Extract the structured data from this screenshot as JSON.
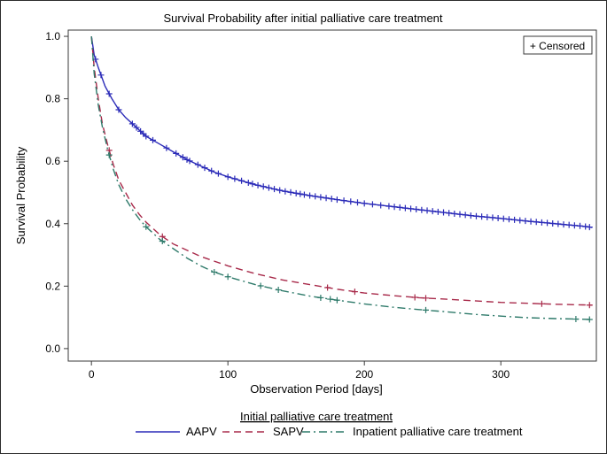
{
  "chart_data": {
    "type": "line",
    "title": "Survival Probability after initial palliative care treatment",
    "xlabel": "Observation Period [days]",
    "ylabel": "Survival Probability",
    "xlim": [
      -17,
      370
    ],
    "ylim": [
      -0.04,
      1.02
    ],
    "xticks": [
      "0",
      "100",
      "200",
      "300"
    ],
    "yticks": [
      "0.0",
      "0.2",
      "0.4",
      "0.6",
      "0.8",
      "1.0"
    ],
    "inset_legend": "+ Censored",
    "legend_title": "Initial palliative care treatment",
    "legend_position": "bottom-center",
    "series": [
      {
        "name": "AAPV",
        "color": "#2b2bb8",
        "dash": "solid",
        "x": [
          0,
          2,
          5,
          10,
          15,
          20,
          25,
          30,
          40,
          50,
          60,
          70,
          80,
          90,
          100,
          120,
          140,
          160,
          180,
          200,
          220,
          240,
          260,
          280,
          300,
          320,
          340,
          360,
          367
        ],
        "y": [
          1.0,
          0.94,
          0.9,
          0.84,
          0.8,
          0.765,
          0.74,
          0.72,
          0.68,
          0.655,
          0.63,
          0.605,
          0.585,
          0.565,
          0.55,
          0.525,
          0.505,
          0.49,
          0.477,
          0.465,
          0.455,
          0.445,
          0.435,
          0.425,
          0.417,
          0.408,
          0.4,
          0.392,
          0.388
        ],
        "censored": [
          3,
          7,
          13,
          20,
          30,
          33,
          36,
          38,
          40,
          45,
          55,
          62,
          67,
          70,
          72,
          78,
          83,
          88,
          93,
          100,
          105,
          110,
          115,
          118,
          122,
          126,
          130,
          134,
          138,
          142,
          146,
          150,
          153,
          156,
          160,
          164,
          168,
          172,
          176,
          180,
          185,
          190,
          195,
          200,
          206,
          212,
          218,
          222,
          226,
          230,
          234,
          238,
          242,
          246,
          250,
          254,
          258,
          262,
          266,
          270,
          274,
          278,
          282,
          286,
          290,
          294,
          298,
          302,
          306,
          310,
          314,
          318,
          322,
          326,
          330,
          334,
          338,
          342,
          346,
          350,
          354,
          358,
          362,
          365
        ]
      },
      {
        "name": "SAPV",
        "color": "#a82a4a",
        "dash": "8,5",
        "x": [
          0,
          2,
          5,
          8,
          12,
          16,
          20,
          25,
          30,
          35,
          40,
          45,
          50,
          55,
          60,
          70,
          80,
          90,
          100,
          120,
          140,
          160,
          180,
          200,
          220,
          240,
          260,
          280,
          300,
          320,
          340,
          360,
          367
        ],
        "y": [
          1.0,
          0.9,
          0.8,
          0.72,
          0.65,
          0.59,
          0.54,
          0.5,
          0.46,
          0.43,
          0.405,
          0.385,
          0.365,
          0.35,
          0.335,
          0.315,
          0.295,
          0.28,
          0.265,
          0.24,
          0.22,
          0.205,
          0.19,
          0.178,
          0.17,
          0.163,
          0.158,
          0.153,
          0.148,
          0.145,
          0.142,
          0.14,
          0.139
        ],
        "censored": [
          13,
          52,
          173,
          193,
          237,
          245,
          330,
          365
        ]
      },
      {
        "name": "Inpatient palliative care treatment",
        "color": "#2e7a6a",
        "dash": "9,4,2,4",
        "x": [
          0,
          2,
          5,
          8,
          12,
          16,
          20,
          25,
          30,
          35,
          40,
          45,
          50,
          55,
          60,
          70,
          80,
          90,
          100,
          120,
          140,
          160,
          180,
          200,
          220,
          240,
          260,
          280,
          300,
          320,
          340,
          360,
          367
        ],
        "y": [
          1.0,
          0.88,
          0.78,
          0.71,
          0.635,
          0.575,
          0.525,
          0.48,
          0.445,
          0.415,
          0.39,
          0.37,
          0.35,
          0.335,
          0.32,
          0.29,
          0.265,
          0.245,
          0.23,
          0.205,
          0.185,
          0.168,
          0.155,
          0.143,
          0.133,
          0.125,
          0.118,
          0.11,
          0.104,
          0.099,
          0.096,
          0.094,
          0.093
        ],
        "censored": [
          13,
          40,
          52,
          90,
          100,
          124,
          137,
          168,
          175,
          180,
          245,
          355,
          365
        ]
      }
    ]
  }
}
